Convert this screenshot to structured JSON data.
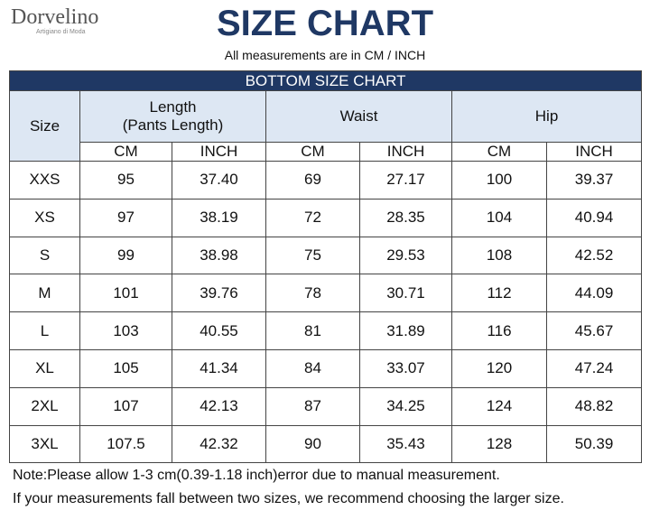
{
  "header": {
    "brand": "Dorvelino",
    "tagline": "Artigiano di Moda",
    "title": "SIZE CHART",
    "subtitle": "All measurements are in CM / INCH"
  },
  "table": {
    "caption": "BOTTOM SIZE CHART",
    "size_header": "Size",
    "groups": [
      [
        "Length",
        "(Pants Length)"
      ],
      [
        "Waist"
      ],
      [
        "Hip"
      ]
    ],
    "units": [
      "CM",
      "INCH",
      "CM",
      "INCH",
      "CM",
      "INCH"
    ],
    "rows": [
      [
        "XXS",
        "95",
        "37.40",
        "69",
        "27.17",
        "100",
        "39.37"
      ],
      [
        "XS",
        "97",
        "38.19",
        "72",
        "28.35",
        "104",
        "40.94"
      ],
      [
        "S",
        "99",
        "38.98",
        "75",
        "29.53",
        "108",
        "42.52"
      ],
      [
        "M",
        "101",
        "39.76",
        "78",
        "30.71",
        "112",
        "44.09"
      ],
      [
        "L",
        "103",
        "40.55",
        "81",
        "31.89",
        "116",
        "45.67"
      ],
      [
        "XL",
        "105",
        "41.34",
        "84",
        "33.07",
        "120",
        "47.24"
      ],
      [
        "2XL",
        "107",
        "42.13",
        "87",
        "34.25",
        "124",
        "48.82"
      ],
      [
        "3XL",
        "107.5",
        "42.32",
        "90",
        "35.43",
        "128",
        "50.39"
      ]
    ]
  },
  "notes": [
    "Note:Please allow 1-3 cm(0.39-1.18 inch)error due to manual measurement.",
    "If your measurements fall between two sizes, we recommend choosing the larger size."
  ]
}
